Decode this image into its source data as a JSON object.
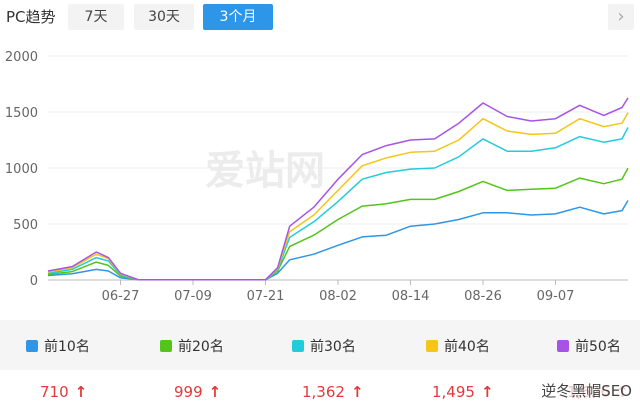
{
  "header": {
    "title": "PC趋势",
    "buttons": [
      "7天",
      "30天",
      "3个月"
    ],
    "active_index": 2
  },
  "watermark": "爱站网",
  "signature": "逆冬黑帽SEO",
  "legend": [
    {
      "label": "前10名",
      "color": "#2d96e8",
      "value": "710"
    },
    {
      "label": "前20名",
      "color": "#52c41a",
      "value": "999"
    },
    {
      "label": "前30名",
      "color": "#22ccdd",
      "value": "1,362"
    },
    {
      "label": "前40名",
      "color": "#f5c518",
      "value": "1,495"
    },
    {
      "label": "前50名",
      "color": "#a853e6",
      "value": "1,626"
    }
  ],
  "chart_data": {
    "type": "line",
    "ylim": [
      0,
      2000
    ],
    "yticks": [
      0,
      500,
      1000,
      1500,
      2000
    ],
    "xticks": [
      "06-27",
      "07-09",
      "07-21",
      "08-02",
      "08-14",
      "08-26",
      "09-07"
    ],
    "x_start": "06-15",
    "x_end": "09-12",
    "grid": true,
    "series": [
      {
        "name": "前10名",
        "color": "#2d96e8",
        "values": [
          [
            0,
            40
          ],
          [
            4,
            55
          ],
          [
            8,
            95
          ],
          [
            10,
            80
          ],
          [
            12,
            20
          ],
          [
            15,
            2
          ],
          [
            36,
            2
          ],
          [
            38,
            60
          ],
          [
            40,
            180
          ],
          [
            44,
            230
          ],
          [
            48,
            310
          ],
          [
            52,
            385
          ],
          [
            56,
            400
          ],
          [
            60,
            480
          ],
          [
            64,
            500
          ],
          [
            68,
            540
          ],
          [
            72,
            600
          ],
          [
            76,
            600
          ],
          [
            80,
            580
          ],
          [
            84,
            590
          ],
          [
            88,
            650
          ],
          [
            92,
            590
          ],
          [
            95,
            620
          ],
          [
            96,
            710
          ]
        ]
      },
      {
        "name": "前20名",
        "color": "#52c41a",
        "values": [
          [
            0,
            50
          ],
          [
            4,
            75
          ],
          [
            8,
            160
          ],
          [
            10,
            130
          ],
          [
            12,
            35
          ],
          [
            15,
            2
          ],
          [
            36,
            2
          ],
          [
            38,
            80
          ],
          [
            40,
            300
          ],
          [
            44,
            400
          ],
          [
            48,
            540
          ],
          [
            52,
            660
          ],
          [
            56,
            680
          ],
          [
            60,
            720
          ],
          [
            64,
            720
          ],
          [
            68,
            790
          ],
          [
            72,
            880
          ],
          [
            76,
            800
          ],
          [
            80,
            810
          ],
          [
            84,
            820
          ],
          [
            88,
            910
          ],
          [
            92,
            860
          ],
          [
            95,
            900
          ],
          [
            96,
            999
          ]
        ]
      },
      {
        "name": "前30名",
        "color": "#22ccdd",
        "values": [
          [
            0,
            60
          ],
          [
            4,
            95
          ],
          [
            8,
            200
          ],
          [
            10,
            170
          ],
          [
            12,
            45
          ],
          [
            15,
            2
          ],
          [
            36,
            2
          ],
          [
            38,
            90
          ],
          [
            40,
            380
          ],
          [
            44,
            520
          ],
          [
            48,
            700
          ],
          [
            52,
            900
          ],
          [
            56,
            960
          ],
          [
            60,
            990
          ],
          [
            64,
            1000
          ],
          [
            68,
            1100
          ],
          [
            72,
            1260
          ],
          [
            76,
            1150
          ],
          [
            80,
            1150
          ],
          [
            84,
            1180
          ],
          [
            88,
            1280
          ],
          [
            92,
            1230
          ],
          [
            95,
            1260
          ],
          [
            96,
            1362
          ]
        ]
      },
      {
        "name": "前40名",
        "color": "#f5c518",
        "values": [
          [
            0,
            70
          ],
          [
            4,
            110
          ],
          [
            8,
            230
          ],
          [
            10,
            190
          ],
          [
            12,
            55
          ],
          [
            15,
            2
          ],
          [
            36,
            2
          ],
          [
            38,
            100
          ],
          [
            40,
            430
          ],
          [
            44,
            580
          ],
          [
            48,
            800
          ],
          [
            52,
            1020
          ],
          [
            56,
            1090
          ],
          [
            60,
            1140
          ],
          [
            64,
            1150
          ],
          [
            68,
            1250
          ],
          [
            72,
            1440
          ],
          [
            76,
            1330
          ],
          [
            80,
            1300
          ],
          [
            84,
            1310
          ],
          [
            88,
            1440
          ],
          [
            92,
            1370
          ],
          [
            95,
            1400
          ],
          [
            96,
            1495
          ]
        ]
      },
      {
        "name": "前50名",
        "color": "#a853e6",
        "values": [
          [
            0,
            80
          ],
          [
            4,
            120
          ],
          [
            8,
            250
          ],
          [
            10,
            200
          ],
          [
            12,
            60
          ],
          [
            15,
            2
          ],
          [
            36,
            2
          ],
          [
            38,
            110
          ],
          [
            40,
            480
          ],
          [
            44,
            650
          ],
          [
            48,
            900
          ],
          [
            52,
            1120
          ],
          [
            56,
            1200
          ],
          [
            60,
            1250
          ],
          [
            64,
            1260
          ],
          [
            68,
            1400
          ],
          [
            72,
            1580
          ],
          [
            76,
            1460
          ],
          [
            80,
            1420
          ],
          [
            84,
            1440
          ],
          [
            88,
            1560
          ],
          [
            92,
            1470
          ],
          [
            95,
            1540
          ],
          [
            96,
            1626
          ]
        ]
      }
    ]
  }
}
